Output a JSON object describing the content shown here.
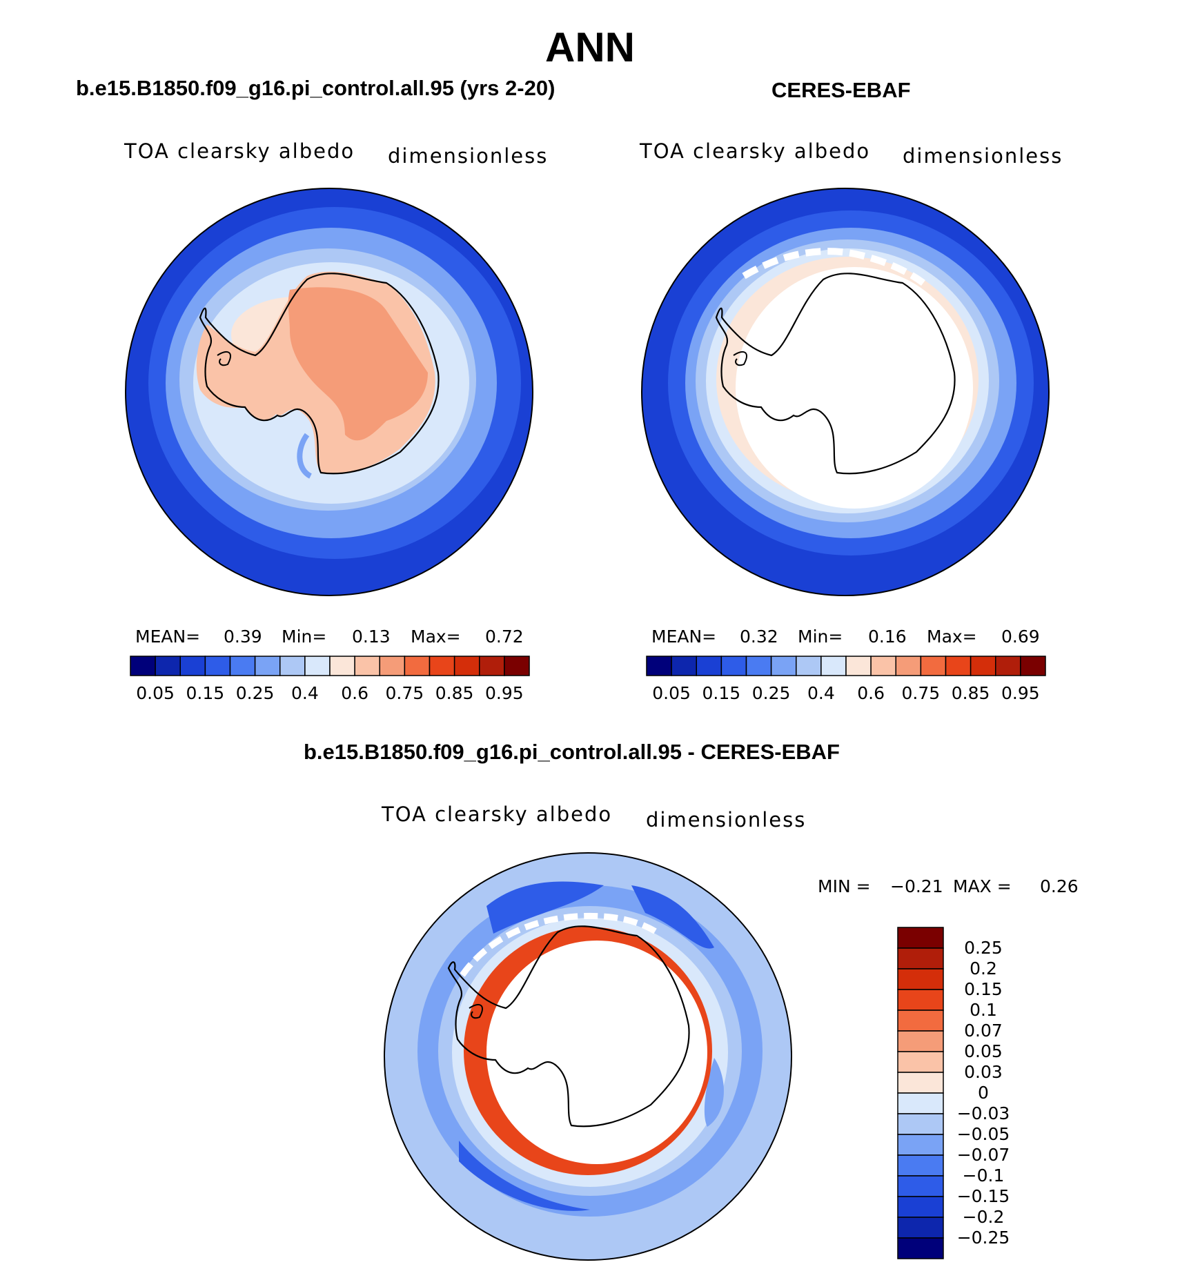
{
  "figure_title": "ANN",
  "panels": {
    "model": {
      "title": "b.e15.B1850.f09_g16.pi_control.all.95 (yrs 2-20)",
      "variable": "TOA clearsky albedo",
      "units": "dimensionless",
      "mean_label": "MEAN=",
      "mean_value": "0.39",
      "min_label": "Min=",
      "min_value": "0.13",
      "max_label": "Max=",
      "max_value": "0.72"
    },
    "obs": {
      "title": "CERES-EBAF",
      "variable": "TOA clearsky albedo",
      "units": "dimensionless",
      "mean_label": "MEAN=",
      "mean_value": "0.32",
      "min_label": "Min=",
      "min_value": "0.16",
      "max_label": "Max=",
      "max_value": "0.69"
    },
    "diff": {
      "title": "b.e15.B1850.f09_g16.pi_control.all.95 - CERES-EBAF",
      "variable": "TOA clearsky albedo",
      "units": "dimensionless",
      "min_label": "MIN =",
      "min_value": "−0.21",
      "max_label": "MAX =",
      "max_value": "0.26"
    }
  },
  "colorbar": {
    "field_ticks": [
      "0.05",
      "0.15",
      "0.25",
      "0.4",
      "0.6",
      "0.75",
      "0.85",
      "0.95"
    ],
    "field_colors": [
      "#00007a",
      "#0d26ad",
      "#1a40d4",
      "#2e5ce8",
      "#4a7bf2",
      "#7aa3f5",
      "#adc8f5",
      "#d9e8fb",
      "#fbe6d9",
      "#fac3a8",
      "#f59c78",
      "#f26b3f",
      "#e8451a",
      "#d42e0a",
      "#b01e0a",
      "#7a0000"
    ],
    "diff_ticks": [
      "0.25",
      "0.2",
      "0.15",
      "0.1",
      "0.07",
      "0.05",
      "0.03",
      "0",
      "−0.03",
      "−0.05",
      "−0.07",
      "−0.1",
      "−0.15",
      "−0.2",
      "−0.25"
    ],
    "diff_colors": [
      "#7a0000",
      "#b01e0a",
      "#d42e0a",
      "#e8451a",
      "#f26b3f",
      "#f59c78",
      "#fac3a8",
      "#fbe6d9",
      "#d9e8fb",
      "#adc8f5",
      "#7aa3f5",
      "#4a7bf2",
      "#2e5ce8",
      "#1a40d4",
      "#0d26ad",
      "#00007a"
    ]
  },
  "map_colors": {
    "outer": "#1a40d4",
    "band2": "#2e5ce8",
    "band3": "#7aa3f5",
    "band4": "#adc8f5",
    "band5": "#d9e8fb",
    "coast_ice": "#fbe6d9",
    "land": "#fac3a8",
    "interior": "#f59c78",
    "diff_ring": "#e8451a",
    "diff_blue": "#7aa3f5",
    "diff_dark": "#2e5ce8",
    "diff_light": "#d9e8fb",
    "white": "#ffffff"
  }
}
